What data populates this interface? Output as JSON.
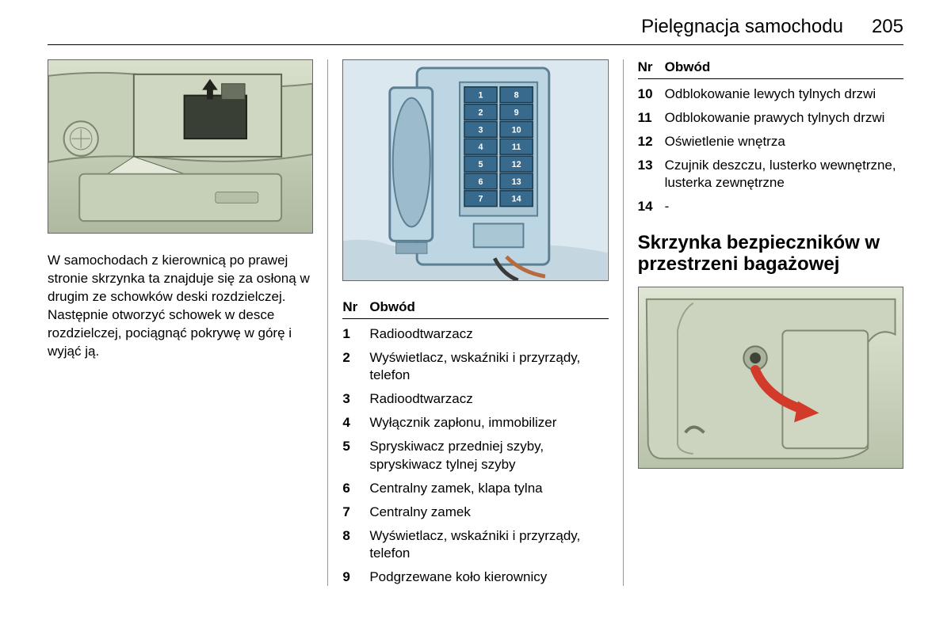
{
  "header": {
    "title": "Pielęgnacja samochodu",
    "page_number": "205"
  },
  "col1": {
    "paragraph": "W samochodach z kierownicą po prawej stronie skrzynka ta znajduje się za osłoną w drugim ze schowków deski rozdzielczej. Następnie otworzyć schowek w desce rozdzielczej, pociągnąć pokrywę w górę i wyjąć ją."
  },
  "fuse_diagram": {
    "left": [
      "1",
      "2",
      "3",
      "4",
      "5",
      "6",
      "7"
    ],
    "right": [
      "8",
      "9",
      "10",
      "11",
      "12",
      "13",
      "14"
    ],
    "slot_fill": "#376a8c",
    "slot_border": "#1a394d",
    "box_fill": "#bcd7e3",
    "box_border": "#5c7f93"
  },
  "table_header": {
    "nr": "Nr",
    "obwod": "Obwód"
  },
  "col2_rows": [
    {
      "nr": "1",
      "desc": "Radioodtwarzacz"
    },
    {
      "nr": "2",
      "desc": "Wyświetlacz, wskaźniki i przyrządy, telefon"
    },
    {
      "nr": "3",
      "desc": "Radioodtwarzacz"
    },
    {
      "nr": "4",
      "desc": "Wyłącznik zapłonu, immobilizer"
    },
    {
      "nr": "5",
      "desc": "Spryskiwacz przedniej szyby, spryskiwacz tylnej szyby"
    },
    {
      "nr": "6",
      "desc": "Centralny zamek, klapa tylna"
    },
    {
      "nr": "7",
      "desc": "Centralny zamek"
    },
    {
      "nr": "8",
      "desc": "Wyświetlacz, wskaźniki i przyrządy, telefon"
    },
    {
      "nr": "9",
      "desc": "Podgrzewane koło kierownicy"
    }
  ],
  "col3_rows": [
    {
      "nr": "10",
      "desc": "Odblokowanie lewych tylnych drzwi"
    },
    {
      "nr": "11",
      "desc": "Odblokowanie prawych tylnych drzwi"
    },
    {
      "nr": "12",
      "desc": "Oświetlenie wnętrza"
    },
    {
      "nr": "13",
      "desc": "Czujnik deszczu, lusterko wewnętrzne, lusterka zewnętrzne"
    },
    {
      "nr": "14",
      "desc": "-"
    }
  ],
  "col3_section_title": "Skrzynka bezpieczników w przestrzeni bagażowej",
  "colors": {
    "illus_bg_top": "#d9e0cc",
    "illus_bg_bot": "#b6c3a8",
    "illus_line": "#6f7a65",
    "arrow": "#d23a2a"
  }
}
